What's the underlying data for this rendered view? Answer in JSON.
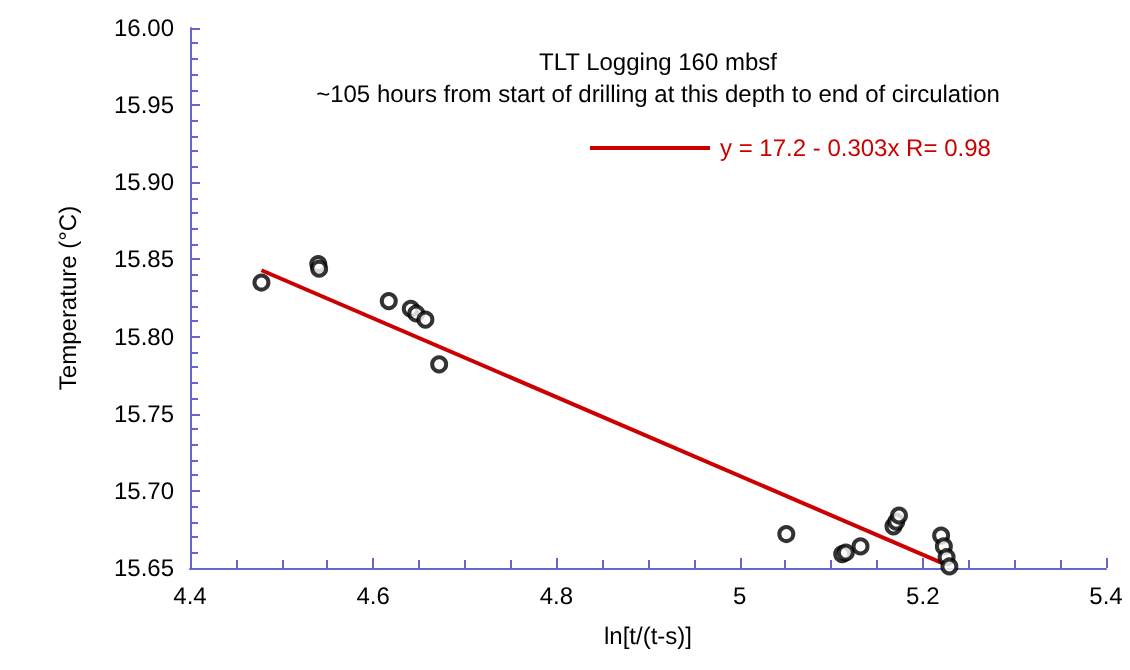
{
  "chart_data": {
    "type": "scatter",
    "title": "TLT Logging 160 mbsf",
    "subtitle": "~105 hours from start of drilling at this depth to end of circulation",
    "xlabel": "ln[t/(t-s)]",
    "ylabel": "Temperature (°C)",
    "xlim": [
      4.4,
      5.4
    ],
    "xticks": [
      4.4,
      4.6,
      4.8,
      5.0,
      5.2,
      5.4
    ],
    "ylim": [
      15.65,
      16.0
    ],
    "yticks": [
      {
        "value": 15.65,
        "label": "15.65"
      },
      {
        "value": 15.7,
        "label": "15.70"
      },
      {
        "value": 15.75,
        "label": "15.75"
      },
      {
        "value": 15.8,
        "label": "15.80"
      },
      {
        "value": 15.85,
        "label": "15.85"
      },
      {
        "value": 15.9,
        "label": "15.90"
      },
      {
        "value": 15.95,
        "label": "15.95"
      },
      {
        "value": 16.0,
        "label": "16.00"
      }
    ],
    "grid": false,
    "legend": "top",
    "marker": "circle",
    "series": [
      {
        "color": "#000000",
        "x": [
          4.478,
          4.54,
          4.541,
          4.617,
          4.641,
          4.647,
          4.657,
          4.672,
          5.051,
          5.112,
          5.116,
          5.132,
          5.168,
          5.171,
          5.174,
          5.22,
          5.223,
          5.226,
          5.229
        ],
        "values": [
          15.835,
          15.847,
          15.844,
          15.823,
          15.818,
          15.815,
          15.811,
          15.782,
          15.672,
          15.659,
          15.66,
          15.664,
          15.677,
          15.68,
          15.684,
          15.671,
          15.664,
          15.657,
          15.651
        ]
      },
      {
        "type": "line",
        "name": "y = 17.2 - 0.303x R= 0.98",
        "color": "#cc0000",
        "marker": "none",
        "x": [
          4.478,
          5.222
        ],
        "values": [
          15.843,
          15.653
        ]
      }
    ]
  }
}
